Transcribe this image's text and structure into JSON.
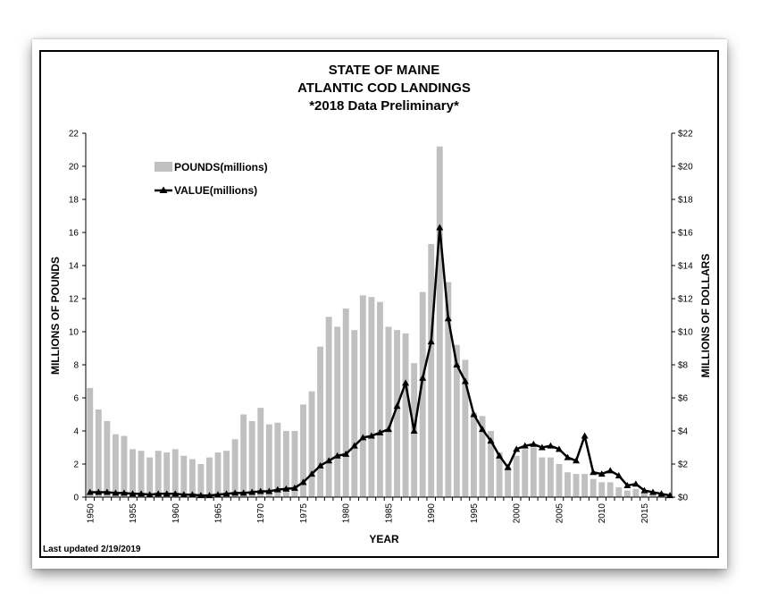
{
  "chart_data": {
    "type": "bar",
    "title_lines": [
      "STATE OF MAINE",
      "ATLANTIC COD LANDINGS",
      "*2018 Data Preliminary*"
    ],
    "xlabel": "YEAR",
    "ylabel_left": "MILLIONS OF POUNDS",
    "ylabel_right": "MILLIONS OF DOLLARS",
    "ylim": [
      0,
      22
    ],
    "yticks_left": [
      "0",
      "2",
      "4",
      "6",
      "8",
      "10",
      "12",
      "14",
      "16",
      "18",
      "20",
      "22"
    ],
    "yticks_right": [
      "$0",
      "$2",
      "$4",
      "$6",
      "$8",
      "$10",
      "$12",
      "$14",
      "$16",
      "$18",
      "$20",
      "$22"
    ],
    "xtick_labels": [
      "1950",
      "1955",
      "1960",
      "1965",
      "1970",
      "1975",
      "1980",
      "1985",
      "1990",
      "1995",
      "2000",
      "2005",
      "2010",
      "2015"
    ],
    "footnote": "Last updated 2/19/2019",
    "legend": {
      "placement": "top-left",
      "bars_label": "POUNDS(millions)",
      "line_label": "VALUE(millions)"
    },
    "bar_color": "#c0c0c0",
    "line_color": "#000000",
    "years": [
      1950,
      1951,
      1952,
      1953,
      1954,
      1955,
      1956,
      1957,
      1958,
      1959,
      1960,
      1961,
      1962,
      1963,
      1964,
      1965,
      1966,
      1967,
      1968,
      1969,
      1970,
      1971,
      1972,
      1973,
      1974,
      1975,
      1976,
      1977,
      1978,
      1979,
      1980,
      1981,
      1982,
      1983,
      1984,
      1985,
      1986,
      1987,
      1988,
      1989,
      1990,
      1991,
      1992,
      1993,
      1994,
      1995,
      1996,
      1997,
      1998,
      1999,
      2000,
      2001,
      2002,
      2003,
      2004,
      2005,
      2006,
      2007,
      2008,
      2009,
      2010,
      2011,
      2012,
      2013,
      2014,
      2015,
      2016,
      2017,
      2018
    ],
    "series": [
      {
        "name": "POUNDS(millions)",
        "type": "bar",
        "values": [
          6.6,
          5.3,
          4.6,
          3.8,
          3.7,
          2.9,
          2.8,
          2.4,
          2.8,
          2.7,
          2.9,
          2.5,
          2.3,
          2.0,
          2.4,
          2.7,
          2.8,
          3.5,
          5.0,
          4.6,
          5.4,
          4.4,
          4.5,
          4.0,
          4.0,
          5.6,
          6.4,
          9.1,
          10.9,
          10.3,
          11.4,
          10.1,
          12.2,
          12.1,
          11.8,
          10.3,
          10.1,
          9.9,
          8.1,
          12.4,
          15.3,
          21.2,
          13.0,
          9.2,
          8.3,
          5.1,
          4.9,
          4.0,
          2.7,
          1.8,
          2.5,
          2.9,
          3.0,
          2.4,
          2.4,
          2.0,
          1.5,
          1.4,
          1.4,
          1.1,
          0.9,
          0.9,
          0.6,
          0.4,
          0.5,
          0.3,
          0.2,
          0.2,
          0.1
        ]
      },
      {
        "name": "VALUE(millions)",
        "type": "line",
        "values": [
          0.3,
          0.3,
          0.3,
          0.25,
          0.25,
          0.2,
          0.2,
          0.15,
          0.2,
          0.2,
          0.2,
          0.15,
          0.15,
          0.1,
          0.1,
          0.15,
          0.2,
          0.25,
          0.25,
          0.3,
          0.35,
          0.35,
          0.45,
          0.5,
          0.55,
          0.9,
          1.4,
          1.9,
          2.2,
          2.5,
          2.6,
          3.1,
          3.6,
          3.7,
          3.9,
          4.1,
          5.5,
          6.9,
          4.0,
          7.2,
          9.4,
          16.3,
          10.8,
          8.0,
          7.0,
          5.0,
          4.1,
          3.4,
          2.5,
          1.8,
          2.9,
          3.1,
          3.2,
          3.0,
          3.1,
          2.9,
          2.4,
          2.2,
          3.7,
          1.5,
          1.4,
          1.6,
          1.3,
          0.7,
          0.8,
          0.4,
          0.3,
          0.2,
          0.1
        ]
      }
    ]
  }
}
